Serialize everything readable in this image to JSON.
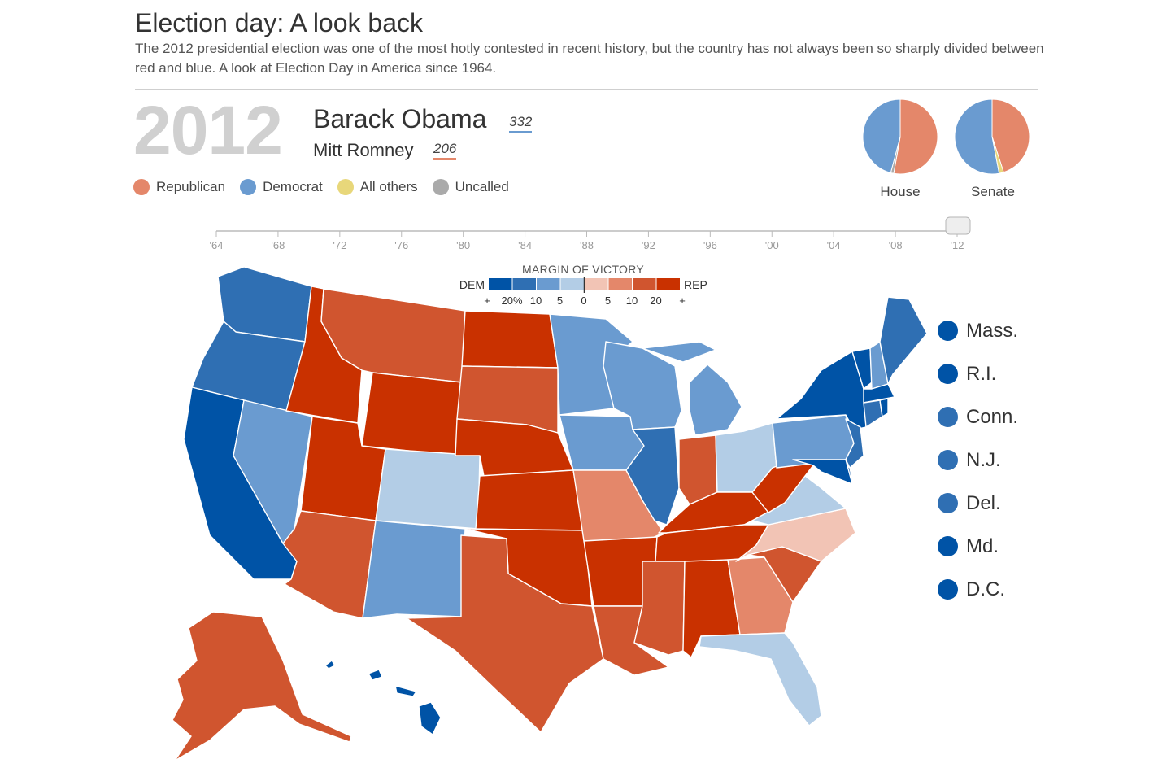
{
  "header": {
    "title": "Election day: A look back",
    "description": "The 2012 presidential election was one of the most hotly contested in recent history, but the country has not always been so sharply divided between red and blue. A look at Election Day in America since 1964."
  },
  "result": {
    "year": "2012",
    "winner": {
      "name": "Barack Obama",
      "electoral_votes": "332",
      "party_color": "#6a9bd0"
    },
    "loser": {
      "name": "Mitt Romney",
      "electoral_votes": "206",
      "party_color": "#e4876a"
    }
  },
  "party_legend": [
    {
      "label": "Republican",
      "color": "#e4876a"
    },
    {
      "label": "Democrat",
      "color": "#6a9bd0"
    },
    {
      "label": "All others",
      "color": "#e8d77a"
    },
    {
      "label": "Uncalled",
      "color": "#aaaaaa"
    }
  ],
  "chambers": [
    {
      "label": "House",
      "dem_share": 0.459,
      "rep_share": 0.528,
      "other_share": 0.0,
      "uncalled_share": 0.013
    },
    {
      "label": "Senate",
      "dem_share": 0.53,
      "rep_share": 0.45,
      "other_share": 0.02,
      "uncalled_share": 0.0
    }
  ],
  "timeline": {
    "ticks": [
      "'64",
      "'68",
      "'72",
      "'76",
      "'80",
      "'84",
      "'88",
      "'92",
      "'96",
      "'00",
      "'04",
      "'08",
      "'12"
    ],
    "selected_index": 12
  },
  "margin_legend": {
    "title": "MARGIN OF VICTORY",
    "dem_label": "DEM",
    "rep_label": "REP",
    "labels": [
      "+",
      "20%",
      "10",
      "5",
      "0",
      "5",
      "10",
      "20",
      "+"
    ],
    "colors": [
      "#0053a6",
      "#2f6fb3",
      "#6a9bd0",
      "#b3cde6",
      "#f2c4b5",
      "#e4876a",
      "#d0552f",
      "#c93100"
    ]
  },
  "small_states": [
    {
      "label": "Mass.",
      "color": "#0053a6"
    },
    {
      "label": "R.I.",
      "color": "#0053a6"
    },
    {
      "label": "Conn.",
      "color": "#2f6fb3"
    },
    {
      "label": "N.J.",
      "color": "#2f6fb3"
    },
    {
      "label": "Del.",
      "color": "#2f6fb3"
    },
    {
      "label": "Md.",
      "color": "#0053a6"
    },
    {
      "label": "D.C.",
      "color": "#0053a6"
    }
  ],
  "states": [
    {
      "id": "WA",
      "color": "#2f6fb3"
    },
    {
      "id": "OR",
      "color": "#2f6fb3"
    },
    {
      "id": "CA",
      "color": "#0053a6"
    },
    {
      "id": "NV",
      "color": "#6a9bd0"
    },
    {
      "id": "ID",
      "color": "#c93100"
    },
    {
      "id": "MT",
      "color": "#d0552f"
    },
    {
      "id": "WY",
      "color": "#c93100"
    },
    {
      "id": "UT",
      "color": "#c93100"
    },
    {
      "id": "AZ",
      "color": "#d0552f"
    },
    {
      "id": "CO",
      "color": "#b3cde6"
    },
    {
      "id": "NM",
      "color": "#6a9bd0"
    },
    {
      "id": "ND",
      "color": "#c93100"
    },
    {
      "id": "SD",
      "color": "#d0552f"
    },
    {
      "id": "NE",
      "color": "#c93100"
    },
    {
      "id": "KS",
      "color": "#c93100"
    },
    {
      "id": "OK",
      "color": "#c93100"
    },
    {
      "id": "TX",
      "color": "#d0552f"
    },
    {
      "id": "MN",
      "color": "#6a9bd0"
    },
    {
      "id": "IA",
      "color": "#6a9bd0"
    },
    {
      "id": "MO",
      "color": "#e4876a"
    },
    {
      "id": "AR",
      "color": "#c93100"
    },
    {
      "id": "LA",
      "color": "#d0552f"
    },
    {
      "id": "WI",
      "color": "#6a9bd0"
    },
    {
      "id": "IL",
      "color": "#2f6fb3"
    },
    {
      "id": "MI",
      "color": "#6a9bd0"
    },
    {
      "id": "IN",
      "color": "#d0552f"
    },
    {
      "id": "OH",
      "color": "#b3cde6"
    },
    {
      "id": "KY",
      "color": "#c93100"
    },
    {
      "id": "TN",
      "color": "#c93100"
    },
    {
      "id": "MS",
      "color": "#d0552f"
    },
    {
      "id": "AL",
      "color": "#c93100"
    },
    {
      "id": "GA",
      "color": "#e4876a"
    },
    {
      "id": "FL",
      "color": "#b3cde6"
    },
    {
      "id": "SC",
      "color": "#d0552f"
    },
    {
      "id": "NC",
      "color": "#f2c4b5"
    },
    {
      "id": "VA",
      "color": "#b3cde6"
    },
    {
      "id": "WV",
      "color": "#c93100"
    },
    {
      "id": "PA",
      "color": "#6a9bd0"
    },
    {
      "id": "NY",
      "color": "#0053a6"
    },
    {
      "id": "VT",
      "color": "#0053a6"
    },
    {
      "id": "NH",
      "color": "#6a9bd0"
    },
    {
      "id": "ME",
      "color": "#2f6fb3"
    },
    {
      "id": "MA",
      "color": "#0053a6"
    },
    {
      "id": "CT",
      "color": "#2f6fb3"
    },
    {
      "id": "RI",
      "color": "#0053a6"
    },
    {
      "id": "NJ",
      "color": "#2f6fb3"
    },
    {
      "id": "DE",
      "color": "#2f6fb3"
    },
    {
      "id": "MD",
      "color": "#0053a6"
    },
    {
      "id": "AK",
      "color": "#d0552f"
    },
    {
      "id": "HI",
      "color": "#0053a6"
    }
  ]
}
